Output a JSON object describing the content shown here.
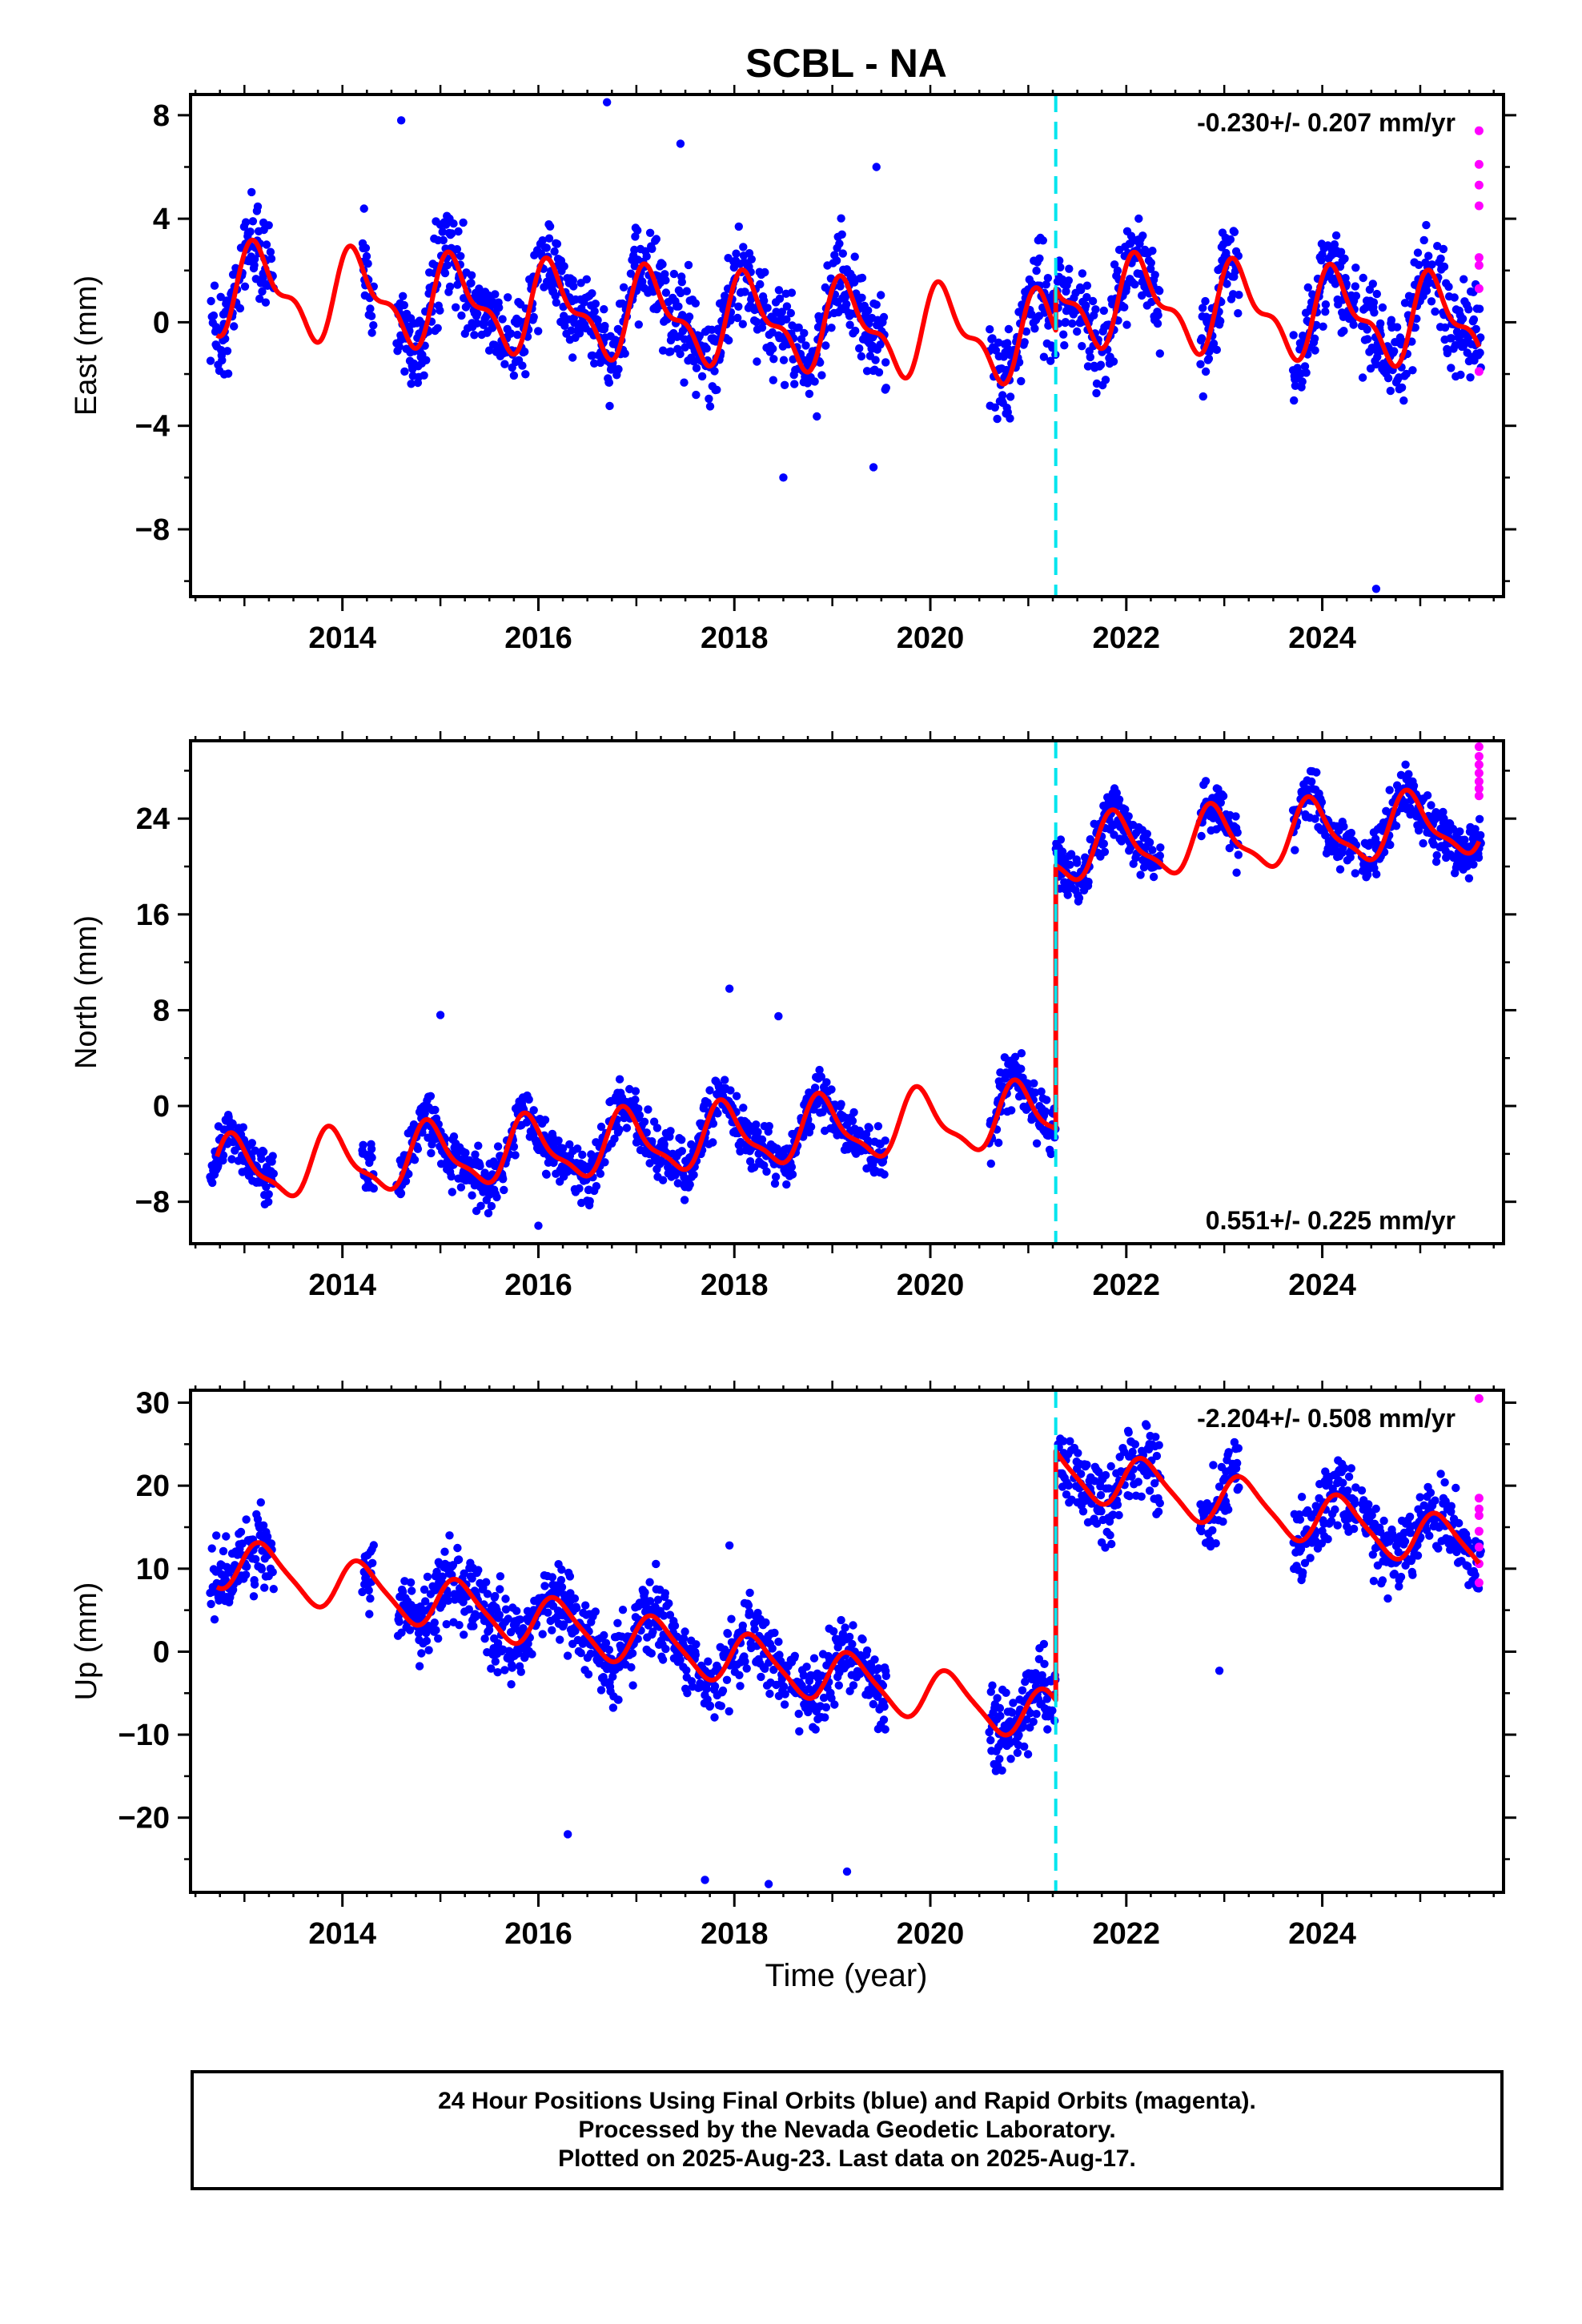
{
  "title": "SCBL - NA",
  "xlabel": "Time (year)",
  "footer": {
    "line1": "24 Hour Positions Using Final Orbits (blue) and Rapid Orbits (magenta).",
    "line2": "Processed by the Nevada Geodetic Laboratory.",
    "line3": "Plotted on 2025-Aug-23. Last data on 2025-Aug-17."
  },
  "colors": {
    "final": "#0000ff",
    "rapid": "#ff00ff",
    "model": "#ff0000",
    "offset": "#00e5ee"
  },
  "chart_data": [
    {
      "type": "scatter",
      "ylabel": "East (mm)",
      "rate_label": "-0.230+/- 0.207 mm/yr",
      "rate_position": "top-right",
      "xlim": [
        2012.45,
        2025.85
      ],
      "ylim": [
        -10.6,
        8.8
      ],
      "xticks": [
        2014,
        2016,
        2018,
        2020,
        2022,
        2024
      ],
      "yticks": [
        8,
        4,
        0,
        -4,
        -8
      ],
      "offset_epoch": 2021.28,
      "grid": false,
      "model": {
        "mean_before": -0.15,
        "jump": 1.6,
        "annual_amp": 1.5,
        "semiannual_amp": 0.7,
        "annual_phase": 0.6,
        "rate": -0.23
      },
      "scatter_noise": 1.6,
      "data_gaps": [
        [
          2013.3,
          2014.2
        ],
        [
          2014.32,
          2014.55
        ],
        [
          2019.55,
          2020.6
        ],
        [
          2022.35,
          2022.75
        ],
        [
          2023.15,
          2023.7
        ],
        [
          2024.35,
          2024.4
        ]
      ],
      "rapid": {
        "x": [
          2025.6,
          2025.6,
          2025.6,
          2025.6,
          2025.6,
          2025.6,
          2025.6,
          2025.6
        ],
        "y": [
          7.4,
          6.1,
          5.3,
          4.5,
          2.5,
          2.2,
          1.3,
          -1.9
        ]
      },
      "outliers": {
        "x": [
          2016.7,
          2014.6,
          2017.45,
          2019.45,
          2024.55,
          2019.42,
          2018.5
        ],
        "y": [
          8.5,
          7.8,
          6.9,
          6.0,
          -10.3,
          -5.6,
          -6.0
        ]
      }
    },
    {
      "type": "scatter",
      "ylabel": "North (mm)",
      "rate_label": "0.551+/- 0.225 mm/yr",
      "rate_position": "bottom-right",
      "xlim": [
        2012.45,
        2025.85
      ],
      "ylim": [
        -11.5,
        30.5
      ],
      "xticks": [
        2014,
        2016,
        2018,
        2020,
        2022,
        2024
      ],
      "yticks": [
        24,
        16,
        8,
        0,
        -8
      ],
      "offset_epoch": 2021.28,
      "grid": false,
      "model": {
        "mean_before": -2.0,
        "jump": 22.0,
        "annual_amp": 2.5,
        "semiannual_amp": 0.8,
        "annual_phase": 2.2,
        "rate": 0.551
      },
      "scatter_noise": 1.9,
      "data_gaps": [
        [
          2013.3,
          2014.2
        ],
        [
          2014.32,
          2014.55
        ],
        [
          2019.55,
          2020.6
        ],
        [
          2022.35,
          2022.75
        ],
        [
          2023.15,
          2023.7
        ],
        [
          2024.35,
          2024.4
        ]
      ],
      "rapid": {
        "x": [
          2025.6,
          2025.6,
          2025.6,
          2025.6,
          2025.6,
          2025.6,
          2025.6
        ],
        "y": [
          30.0,
          29.2,
          28.5,
          27.8,
          27.1,
          26.5,
          25.9
        ]
      },
      "outliers": {
        "x": [
          2017.95,
          2018.45,
          2016.0,
          2015.0
        ],
        "y": [
          9.8,
          7.5,
          -10.0,
          7.6
        ]
      }
    },
    {
      "type": "scatter",
      "ylabel": "Up (mm)",
      "rate_label": "-2.204+/- 0.508 mm/yr",
      "rate_position": "top-right",
      "xlim": [
        2012.45,
        2025.85
      ],
      "ylim": [
        -29,
        31.5
      ],
      "xticks": [
        2014,
        2016,
        2018,
        2020,
        2022,
        2024
      ],
      "yticks": [
        30,
        20,
        10,
        0,
        -10,
        -20
      ],
      "offset_epoch": 2021.28,
      "grid": false,
      "model": {
        "mean_before": -3.0,
        "jump": 30.0,
        "annual_amp": 3.0,
        "semiannual_amp": 0.6,
        "annual_phase": 0.3,
        "rate": -2.204
      },
      "scatter_noise": 4.2,
      "data_gaps": [
        [
          2013.3,
          2014.2
        ],
        [
          2014.32,
          2014.55
        ],
        [
          2019.55,
          2020.6
        ],
        [
          2022.35,
          2022.75
        ],
        [
          2023.15,
          2023.7
        ],
        [
          2024.35,
          2024.4
        ]
      ],
      "rapid": {
        "x": [
          2025.6,
          2025.6,
          2025.6,
          2025.6,
          2025.6,
          2025.6,
          2025.6,
          2025.6
        ],
        "y": [
          30.5,
          18.5,
          17.2,
          16.4,
          14.5,
          12.6,
          10.6,
          8.3
        ]
      },
      "outliers": {
        "x": [
          2017.7,
          2018.35,
          2017.95,
          2019.15,
          2022.95,
          2016.3
        ],
        "y": [
          -27.5,
          -28.0,
          12.8,
          -26.5,
          -2.3,
          -22.0
        ]
      }
    }
  ]
}
